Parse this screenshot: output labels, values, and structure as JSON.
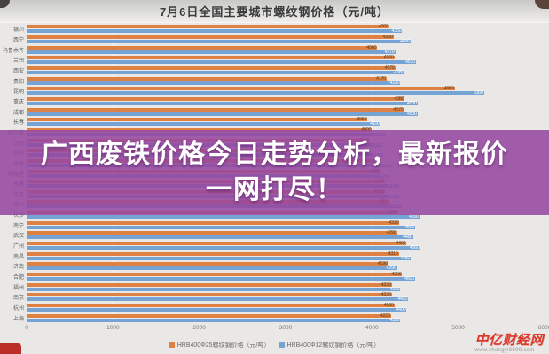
{
  "title": "7月6日全国主要城市螺纹钢价格（元/吨）",
  "banner": {
    "line1": "广西废铁价格今日走势分析，最新报价",
    "line2": "一网打尽！"
  },
  "chart_data": {
    "type": "bar",
    "orientation": "horizontal",
    "title": "7月6日全国主要城市螺纹钢价格（元/吨）",
    "xlabel": "",
    "ylabel": "",
    "xlim": [
      0,
      6000
    ],
    "xticks": [
      "0",
      "1000",
      "2000",
      "3000",
      "4000",
      "5000",
      "6000"
    ],
    "grid": true,
    "legend_position": "bottom",
    "categories": [
      "银川",
      "西宁",
      "乌鲁木齐",
      "兰州",
      "西安",
      "贵阳",
      "昆明",
      "重庆",
      "成都",
      "长春",
      "哈尔滨",
      "沈阳",
      "包头",
      "太原",
      "石家庄",
      "天津",
      "北京",
      "郑州",
      "长沙",
      "南宁",
      "武汉",
      "广州",
      "南昌",
      "济南",
      "合肥",
      "福州",
      "南京",
      "杭州",
      "上海"
    ],
    "series": [
      {
        "name": "HRB400Φ25螺纹钢价格（元/吨）",
        "color": "#e08144",
        "values": [
          4200,
          4250,
          4060,
          4260,
          4270,
          4170,
          4960,
          4380,
          4370,
          3950,
          4000,
          3970,
          3930,
          4030,
          4100,
          4150,
          4150,
          4200,
          4300,
          4320,
          4290,
          4400,
          4310,
          4190,
          4350,
          4230,
          4230,
          4260,
          4220
        ]
      },
      {
        "name": "HRB400Φ12螺纹钢价格（元/吨）",
        "color": "#74a3d4",
        "values": [
          4350,
          4450,
          4270,
          4510,
          4380,
          4330,
          5300,
          4530,
          4530,
          4100,
          4150,
          4120,
          4130,
          4230,
          4200,
          4310,
          4310,
          4350,
          4550,
          4500,
          4480,
          4560,
          4450,
          4290,
          4500,
          4330,
          4420,
          4400,
          4330
        ]
      }
    ]
  },
  "watermark": {
    "brand": "中亿财经网",
    "url": "www.zhongyi9999.com"
  },
  "colors": {
    "banner_purple": "#9647a0",
    "series_orange": "#e08144",
    "series_blue": "#74a3d4",
    "watermark_red": "#d93a2e"
  }
}
